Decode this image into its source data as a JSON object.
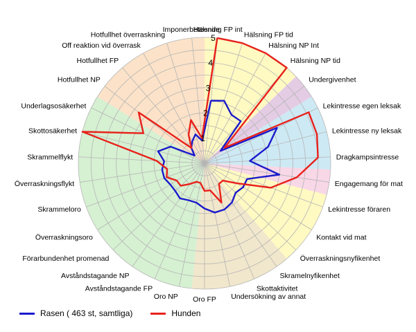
{
  "chart_data": {
    "type": "radar",
    "rmax": 5,
    "ticks": [
      1,
      2,
      3,
      4,
      5
    ],
    "tick_labels": [
      "1",
      "2",
      "3",
      "4",
      "5"
    ],
    "categories": [
      "Hälsning FP int",
      "Hälsning FP tid",
      "Hälsning NP Int",
      "Hälsning NP tid",
      "Undergivenhet",
      "Lekintresse egen leksak",
      "Lekintresse ny leksak",
      "Dragkampsintresse",
      "Engagemang för mat",
      "Lekintresse föraren",
      "Kontakt vid mat",
      "Överraskningsnyfikenhet",
      "Skramelnyfikenhet",
      "Skottaktivitet",
      "Undersökning av annat",
      "Oro FP",
      "Oro NP",
      "Avståndstagande FP",
      "Avståndstagande NP",
      "Förarbundenhet promenad",
      "Överraskningsoro",
      "Skrammeloro",
      "Överraskningsflykt",
      "Skrammelflykt",
      "Skottosäkerhet",
      "Underlagsosäkerhet",
      "Hotfullhet NP",
      "Hotfullhet FP",
      "Off reaktion vid överrask",
      "Hotfullhet överraskning",
      "Imponerbeteende"
    ],
    "sectors": [
      {
        "from": 0,
        "to": 3,
        "color": "#fff9c2"
      },
      {
        "from": 4,
        "to": 4,
        "color": "#e4cce4"
      },
      {
        "from": 5,
        "to": 7,
        "color": "#cde9f4"
      },
      {
        "from": 8,
        "to": 8,
        "color": "#f8d7e6"
      },
      {
        "from": 9,
        "to": 11,
        "color": "#fff9c2"
      },
      {
        "from": 12,
        "to": 15,
        "color": "#f1e7cc"
      },
      {
        "from": 16,
        "to": 25,
        "color": "#d6f0d2"
      },
      {
        "from": 26,
        "to": 30,
        "color": "#fbe2c8"
      }
    ],
    "series": [
      {
        "name": "Rasen ( 463 st, samtliga)",
        "color": "#1a1acc",
        "values": [
          2.5,
          2.6,
          2.2,
          2.2,
          0.8,
          3.2,
          2.6,
          1.8,
          3.0,
          1.8,
          1.8,
          1.7,
          1.9,
          2.0,
          2.0,
          1.8,
          1.6,
          1.6,
          1.7,
          1.6,
          1.6,
          1.7,
          1.7,
          1.6,
          1.9,
          1.5,
          0.5,
          0.8,
          1.0,
          1.2,
          0.9
        ]
      },
      {
        "name": "Hunden",
        "color": "#e8211b",
        "values": [
          5.0,
          5.0,
          5.0,
          5.0,
          1.0,
          4.6,
          4.6,
          4.5,
          3.7,
          2.8,
          1.5,
          1.0,
          1.0,
          1.7,
          1.1,
          1.1,
          0.8,
          0.8,
          1.0,
          1.3,
          1.3,
          1.6,
          1.5,
          1.9,
          5.0,
          2.7,
          3.3,
          0.8,
          1.3,
          1.8,
          1.0
        ]
      }
    ]
  }
}
